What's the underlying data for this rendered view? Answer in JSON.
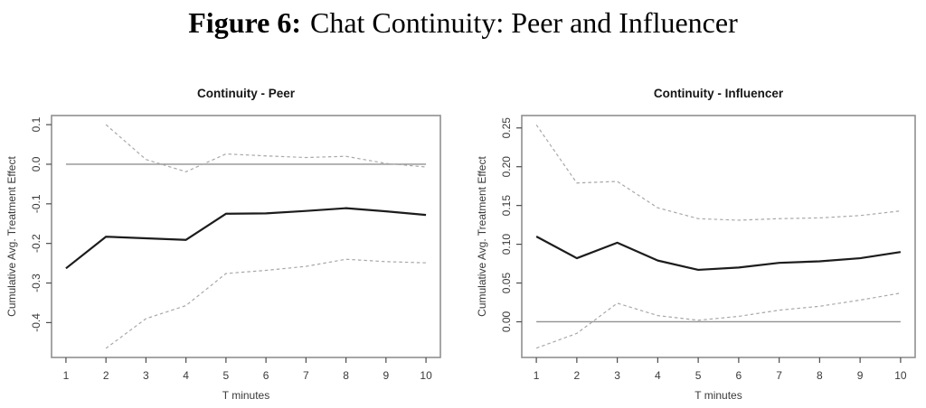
{
  "figure_title": {
    "prefix": "Figure 6:",
    "text": "Chat Continuity: Peer and Influencer"
  },
  "colors": {
    "background": "#ffffff",
    "estimate_line": "#1c1c1c",
    "ci_line": "#a8a8a8",
    "zero_line": "#919191",
    "frame": "#8f8f8f",
    "tick": "#4d4d4d",
    "label_text": "#3a3a3a",
    "panel_title_text": "#161616"
  },
  "chart_data": [
    {
      "type": "line",
      "title": "Continuity - Peer",
      "xlabel": "T minutes",
      "ylabel": "Cumulative Avg. Treatment Effect",
      "x": [
        1,
        2,
        3,
        4,
        5,
        6,
        7,
        8,
        9,
        10
      ],
      "xlim": [
        0.64,
        10.36
      ],
      "ylim": [
        -0.488,
        0.123
      ],
      "grid": false,
      "legend": "none",
      "xticks": {
        "values": [
          1,
          2,
          3,
          4,
          5,
          6,
          7,
          8,
          9,
          10
        ],
        "labels": [
          "1",
          "2",
          "3",
          "4",
          "5",
          "6",
          "7",
          "8",
          "9",
          "10"
        ]
      },
      "yticks": {
        "values": [
          0.1,
          0.0,
          -0.1,
          -0.2,
          -0.3,
          -0.4
        ],
        "labels": [
          "0.1",
          "0.0",
          "-0.1",
          "-0.2",
          "-0.3",
          "-0.4"
        ]
      },
      "refline_y": 0,
      "series": [
        {
          "name": "estimate",
          "style": "solid",
          "values": [
            -0.263,
            -0.183,
            -0.187,
            -0.191,
            -0.125,
            -0.124,
            -0.118,
            -0.111,
            -0.119,
            -0.128
          ]
        },
        {
          "name": "ci-upper",
          "style": "dashed",
          "values": [
            null,
            0.1,
            0.012,
            -0.019,
            0.026,
            0.021,
            0.017,
            0.02,
            0.002,
            -0.007
          ]
        },
        {
          "name": "ci-lower",
          "style": "dashed",
          "values": [
            null,
            -0.465,
            -0.39,
            -0.357,
            -0.276,
            -0.268,
            -0.258,
            -0.24,
            -0.246,
            -0.249
          ]
        }
      ]
    },
    {
      "type": "line",
      "title": "Continuity - Influencer",
      "xlabel": "T minutes",
      "ylabel": "Cumulative Avg. Treatment Effect",
      "x": [
        1,
        2,
        3,
        4,
        5,
        6,
        7,
        8,
        9,
        10
      ],
      "xlim": [
        0.64,
        10.36
      ],
      "ylim": [
        -0.046,
        0.266
      ],
      "grid": false,
      "legend": "none",
      "xticks": {
        "values": [
          1,
          2,
          3,
          4,
          5,
          6,
          7,
          8,
          9,
          10
        ],
        "labels": [
          "1",
          "2",
          "3",
          "4",
          "5",
          "6",
          "7",
          "8",
          "9",
          "10"
        ]
      },
      "yticks": {
        "values": [
          0.25,
          0.2,
          0.15,
          0.1,
          0.05,
          0.0
        ],
        "labels": [
          "0.25",
          "0.20",
          "0.15",
          "0.10",
          "0.05",
          "0.00"
        ]
      },
      "refline_y": 0,
      "series": [
        {
          "name": "estimate",
          "style": "solid",
          "values": [
            0.11,
            0.082,
            0.102,
            0.079,
            0.067,
            0.07,
            0.076,
            0.078,
            0.082,
            0.09
          ]
        },
        {
          "name": "ci-upper",
          "style": "dashed",
          "values": [
            0.254,
            0.179,
            0.181,
            0.147,
            0.133,
            0.131,
            0.133,
            0.134,
            0.137,
            0.143
          ]
        },
        {
          "name": "ci-lower",
          "style": "dashed",
          "values": [
            -0.034,
            -0.015,
            0.024,
            0.008,
            0.002,
            0.007,
            0.015,
            0.02,
            0.028,
            0.037
          ]
        }
      ]
    }
  ]
}
